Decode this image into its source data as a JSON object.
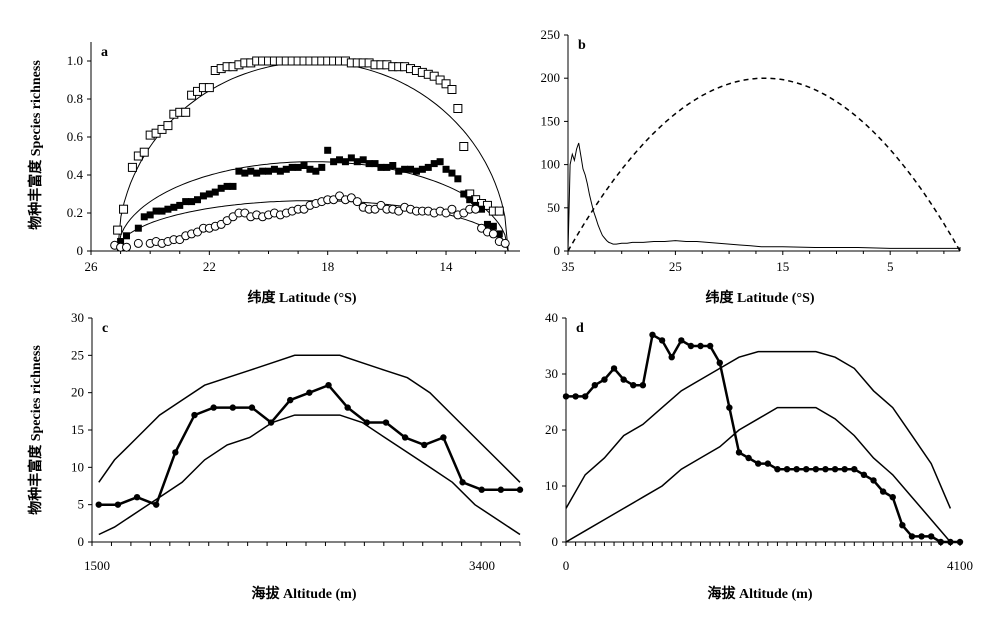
{
  "chart_data": [
    {
      "panel": "a",
      "type": "scatter",
      "xlabel": "纬度  Latitude (°S)",
      "ylabel": "物种丰富度  Species richness",
      "xlim": [
        26,
        11.5
      ],
      "ylim": [
        0,
        1.1
      ],
      "xticks": [
        26,
        22,
        18,
        14
      ],
      "xtick_labels": [
        "26",
        "22",
        "18",
        "14"
      ],
      "yticks": [
        0,
        0.2,
        0.4,
        0.6,
        0.8,
        1.0
      ],
      "ytick_labels": [
        "0",
        "0.2",
        "0.4",
        "0.6",
        "0.8",
        "1.0"
      ],
      "series": [
        {
          "marker": "open-square",
          "x": [
            25.1,
            24.9,
            24.6,
            24.4,
            24.2,
            24.0,
            23.8,
            23.6,
            23.4,
            23.2,
            23.0,
            22.8,
            22.6,
            22.4,
            22.2,
            22.0,
            21.8,
            21.6,
            21.4,
            21.2,
            21.0,
            20.8,
            20.6,
            20.4,
            20.2,
            20.0,
            19.8,
            19.6,
            19.4,
            19.2,
            19.0,
            18.8,
            18.6,
            18.4,
            18.2,
            18.0,
            17.8,
            17.6,
            17.4,
            17.2,
            17.0,
            16.8,
            16.6,
            16.4,
            16.2,
            16.0,
            15.8,
            15.6,
            15.4,
            15.2,
            15.0,
            14.8,
            14.6,
            14.4,
            14.2,
            14.0,
            13.8,
            13.6,
            13.4,
            13.2,
            13.0,
            12.8,
            12.6,
            12.4,
            12.2
          ],
          "y": [
            0.11,
            0.22,
            0.44,
            0.5,
            0.52,
            0.61,
            0.62,
            0.64,
            0.66,
            0.72,
            0.73,
            0.73,
            0.82,
            0.84,
            0.86,
            0.86,
            0.95,
            0.96,
            0.97,
            0.97,
            0.98,
            0.99,
            0.99,
            1.0,
            1.0,
            1.0,
            1.0,
            1.0,
            1.0,
            1.0,
            1.0,
            1.0,
            1.0,
            1.0,
            1.0,
            1.0,
            1.0,
            1.0,
            1.0,
            0.99,
            0.99,
            0.99,
            0.99,
            0.98,
            0.98,
            0.98,
            0.97,
            0.97,
            0.97,
            0.96,
            0.95,
            0.94,
            0.93,
            0.92,
            0.9,
            0.88,
            0.85,
            0.75,
            0.55,
            0.3,
            0.27,
            0.25,
            0.24,
            0.21,
            0.21
          ]
        },
        {
          "marker": "filled-square",
          "x": [
            25.0,
            24.8,
            24.4,
            24.2,
            24.0,
            23.8,
            23.6,
            23.4,
            23.2,
            23.0,
            22.8,
            22.6,
            22.4,
            22.2,
            22.0,
            21.8,
            21.6,
            21.4,
            21.2,
            21.0,
            20.8,
            20.6,
            20.4,
            20.2,
            20.0,
            19.8,
            19.6,
            19.4,
            19.2,
            19.0,
            18.8,
            18.6,
            18.4,
            18.2,
            18.0,
            17.8,
            17.6,
            17.4,
            17.2,
            17.0,
            16.8,
            16.6,
            16.4,
            16.2,
            16.0,
            15.8,
            15.6,
            15.4,
            15.2,
            15.0,
            14.8,
            14.6,
            14.4,
            14.2,
            14.0,
            13.8,
            13.6,
            13.4,
            13.2,
            13.0,
            12.8,
            12.6,
            12.4,
            12.2
          ],
          "y": [
            0.05,
            0.08,
            0.12,
            0.18,
            0.19,
            0.21,
            0.21,
            0.22,
            0.23,
            0.24,
            0.26,
            0.26,
            0.27,
            0.29,
            0.3,
            0.31,
            0.33,
            0.34,
            0.34,
            0.42,
            0.41,
            0.42,
            0.41,
            0.42,
            0.42,
            0.43,
            0.42,
            0.43,
            0.44,
            0.44,
            0.45,
            0.43,
            0.42,
            0.44,
            0.53,
            0.47,
            0.48,
            0.47,
            0.49,
            0.47,
            0.48,
            0.46,
            0.46,
            0.44,
            0.44,
            0.45,
            0.42,
            0.43,
            0.43,
            0.42,
            0.43,
            0.44,
            0.46,
            0.47,
            0.43,
            0.41,
            0.38,
            0.3,
            0.27,
            0.24,
            0.22,
            0.14,
            0.13,
            0.09
          ]
        },
        {
          "marker": "open-circle",
          "x": [
            25.2,
            25.0,
            24.8,
            24.4,
            24.0,
            23.8,
            23.6,
            23.4,
            23.2,
            23.0,
            22.8,
            22.6,
            22.4,
            22.2,
            22.0,
            21.8,
            21.6,
            21.4,
            21.2,
            21.0,
            20.8,
            20.6,
            20.4,
            20.2,
            20.0,
            19.8,
            19.6,
            19.4,
            19.2,
            19.0,
            18.8,
            18.6,
            18.4,
            18.2,
            18.0,
            17.8,
            17.6,
            17.4,
            17.2,
            17.0,
            16.8,
            16.6,
            16.4,
            16.2,
            16.0,
            15.8,
            15.6,
            15.4,
            15.2,
            15.0,
            14.8,
            14.6,
            14.4,
            14.2,
            14.0,
            13.8,
            13.6,
            13.4,
            13.2,
            13.0,
            12.8,
            12.6,
            12.4,
            12.2,
            12.0
          ],
          "y": [
            0.03,
            0.02,
            0.02,
            0.04,
            0.04,
            0.05,
            0.04,
            0.05,
            0.06,
            0.06,
            0.08,
            0.09,
            0.1,
            0.12,
            0.12,
            0.13,
            0.14,
            0.16,
            0.18,
            0.2,
            0.2,
            0.18,
            0.19,
            0.18,
            0.19,
            0.2,
            0.19,
            0.2,
            0.21,
            0.22,
            0.22,
            0.24,
            0.25,
            0.26,
            0.27,
            0.27,
            0.29,
            0.27,
            0.28,
            0.26,
            0.23,
            0.22,
            0.22,
            0.24,
            0.22,
            0.22,
            0.21,
            0.23,
            0.22,
            0.21,
            0.21,
            0.21,
            0.2,
            0.21,
            0.2,
            0.22,
            0.19,
            0.2,
            0.22,
            0.22,
            0.12,
            0.1,
            0.09,
            0.05,
            0.04
          ]
        }
      ],
      "fits": [
        {
          "x0": 25.1,
          "x1": 11.9,
          "peak": 0.995
        },
        {
          "x0": 25.1,
          "x1": 11.9,
          "peak": 0.47
        },
        {
          "x0": 25.1,
          "x1": 11.9,
          "peak": 0.265
        }
      ]
    },
    {
      "panel": "b",
      "type": "line",
      "xlabel": "纬度  Latitude (°S)",
      "xlim": [
        35,
        -1.5
      ],
      "ylim": [
        0,
        250
      ],
      "xticks": [
        35,
        25,
        15,
        5
      ],
      "xtick_labels": [
        "35",
        "25",
        "15",
        "5"
      ],
      "yticks": [
        0,
        50,
        100,
        150,
        200,
        250
      ],
      "ytick_labels": [
        "0",
        "50",
        "100",
        "150",
        "200",
        "250"
      ],
      "series": [
        {
          "style": "solid",
          "x": [
            35,
            34.9,
            34.8,
            34.6,
            34.4,
            34.2,
            34.0,
            33.8,
            33.6,
            33.4,
            33.2,
            33.0,
            32.8,
            32.6,
            32.4,
            32.2,
            32.0,
            31.8,
            31.6,
            31.4,
            31.2,
            31.0,
            30.8,
            30.5,
            30.0,
            29.5,
            29.0,
            28.0,
            27.0,
            26.0,
            25.0,
            24.0,
            23.0,
            22.0,
            21.0,
            20.0,
            19.0,
            18.0,
            17.0,
            16.0,
            15.0,
            12.0,
            10.0,
            8.0,
            5.0,
            2.0,
            0.0,
            -1.5
          ],
          "y": [
            0,
            50,
            100,
            112,
            105,
            118,
            125,
            110,
            95,
            88,
            78,
            65,
            55,
            45,
            38,
            30,
            24,
            18,
            15,
            12,
            10,
            9,
            8,
            8,
            9,
            9,
            10,
            10,
            11,
            11,
            12,
            11,
            11,
            10,
            9,
            8,
            7,
            6,
            5,
            5,
            5,
            4,
            4,
            4,
            3,
            3,
            3,
            3
          ]
        },
        {
          "style": "dashed",
          "peak_x": 16.7,
          "peak_y": 200,
          "x0": 35,
          "x1": -1.5
        }
      ]
    },
    {
      "panel": "c",
      "type": "line",
      "xlabel": "海拔  Altitude (m)",
      "ylabel": "物种丰富度  Species richness",
      "xlim": [
        1500,
        3400
      ],
      "ylim": [
        0,
        30
      ],
      "xtick_labels": [
        "1500",
        "3400"
      ],
      "yticks": [
        0,
        5,
        10,
        15,
        20,
        25,
        30
      ],
      "ytick_labels": [
        "0",
        "5",
        "10",
        "15",
        "20",
        "25",
        "30"
      ],
      "series": [
        {
          "style": "bold-dots",
          "x": [
            1530,
            1615,
            1700,
            1785,
            1870,
            1955,
            2040,
            2125,
            2210,
            2295,
            2380,
            2465,
            2550,
            2635,
            2720,
            2805,
            2890,
            2975,
            3060,
            3145,
            3230,
            3315,
            3400
          ],
          "y": [
            5,
            5,
            6,
            5,
            12,
            17,
            18,
            18,
            18,
            16,
            19,
            20,
            21,
            18,
            16,
            16,
            14,
            13,
            14,
            8,
            7,
            7,
            7
          ]
        },
        {
          "style": "upper-bound",
          "x": [
            1530,
            1600,
            1700,
            1800,
            1900,
            2000,
            2100,
            2200,
            2300,
            2400,
            2500,
            2600,
            2700,
            2800,
            2900,
            3000,
            3100,
            3200,
            3300,
            3400
          ],
          "y": [
            8,
            11,
            14,
            17,
            19,
            21,
            22,
            23,
            24,
            25,
            25,
            25,
            24,
            23,
            22,
            20,
            17,
            14,
            11,
            8
          ]
        },
        {
          "style": "lower-bound",
          "x": [
            1530,
            1600,
            1700,
            1800,
            1900,
            2000,
            2100,
            2200,
            2300,
            2400,
            2500,
            2600,
            2700,
            2800,
            2900,
            3000,
            3100,
            3200,
            3300,
            3400
          ],
          "y": [
            1,
            2,
            4,
            6,
            8,
            11,
            13,
            14,
            16,
            17,
            17,
            17,
            16,
            14,
            12,
            10,
            8,
            5,
            3,
            1
          ]
        }
      ]
    },
    {
      "panel": "d",
      "type": "line",
      "xlabel": "海拔  Altitude (m)",
      "xlim": [
        0,
        4100
      ],
      "ylim": [
        0,
        40
      ],
      "xtick_labels": [
        "0",
        "4100"
      ],
      "yticks": [
        0,
        10,
        20,
        30,
        40
      ],
      "ytick_labels": [
        "0",
        "10",
        "20",
        "30",
        "40"
      ],
      "series": [
        {
          "style": "bold-dots",
          "x": [
            0,
            100,
            200,
            300,
            400,
            500,
            600,
            700,
            800,
            900,
            1000,
            1100,
            1200,
            1300,
            1400,
            1500,
            1600,
            1700,
            1800,
            1900,
            2000,
            2100,
            2200,
            2300,
            2400,
            2500,
            2600,
            2700,
            2800,
            2900,
            3000,
            3100,
            3200,
            3300,
            3400,
            3500,
            3600,
            3700,
            3800,
            3900,
            4000,
            4100
          ],
          "y": [
            26,
            26,
            26,
            28,
            29,
            31,
            29,
            28,
            28,
            37,
            36,
            33,
            36,
            35,
            35,
            35,
            32,
            24,
            16,
            15,
            14,
            14,
            13,
            13,
            13,
            13,
            13,
            13,
            13,
            13,
            13,
            12,
            11,
            9,
            8,
            3,
            1,
            1,
            1,
            0,
            0,
            0
          ]
        },
        {
          "style": "upper-bound",
          "x": [
            0,
            200,
            400,
            600,
            800,
            1000,
            1200,
            1400,
            1600,
            1800,
            2000,
            2200,
            2400,
            2600,
            2800,
            3000,
            3200,
            3400,
            3600,
            3800,
            4000
          ],
          "y": [
            6,
            12,
            15,
            19,
            21,
            24,
            27,
            29,
            31,
            33,
            34,
            34,
            34,
            34,
            33,
            31,
            27,
            24,
            19,
            14,
            6
          ]
        },
        {
          "style": "lower-bound",
          "x": [
            0,
            200,
            400,
            600,
            800,
            1000,
            1200,
            1400,
            1600,
            1800,
            2000,
            2200,
            2400,
            2600,
            2800,
            3000,
            3200,
            3400,
            3600,
            3800,
            4000
          ],
          "y": [
            0,
            2,
            4,
            6,
            8,
            10,
            13,
            15,
            17,
            20,
            22,
            24,
            24,
            24,
            22,
            19,
            15,
            12,
            8,
            4,
            0
          ]
        }
      ]
    }
  ]
}
